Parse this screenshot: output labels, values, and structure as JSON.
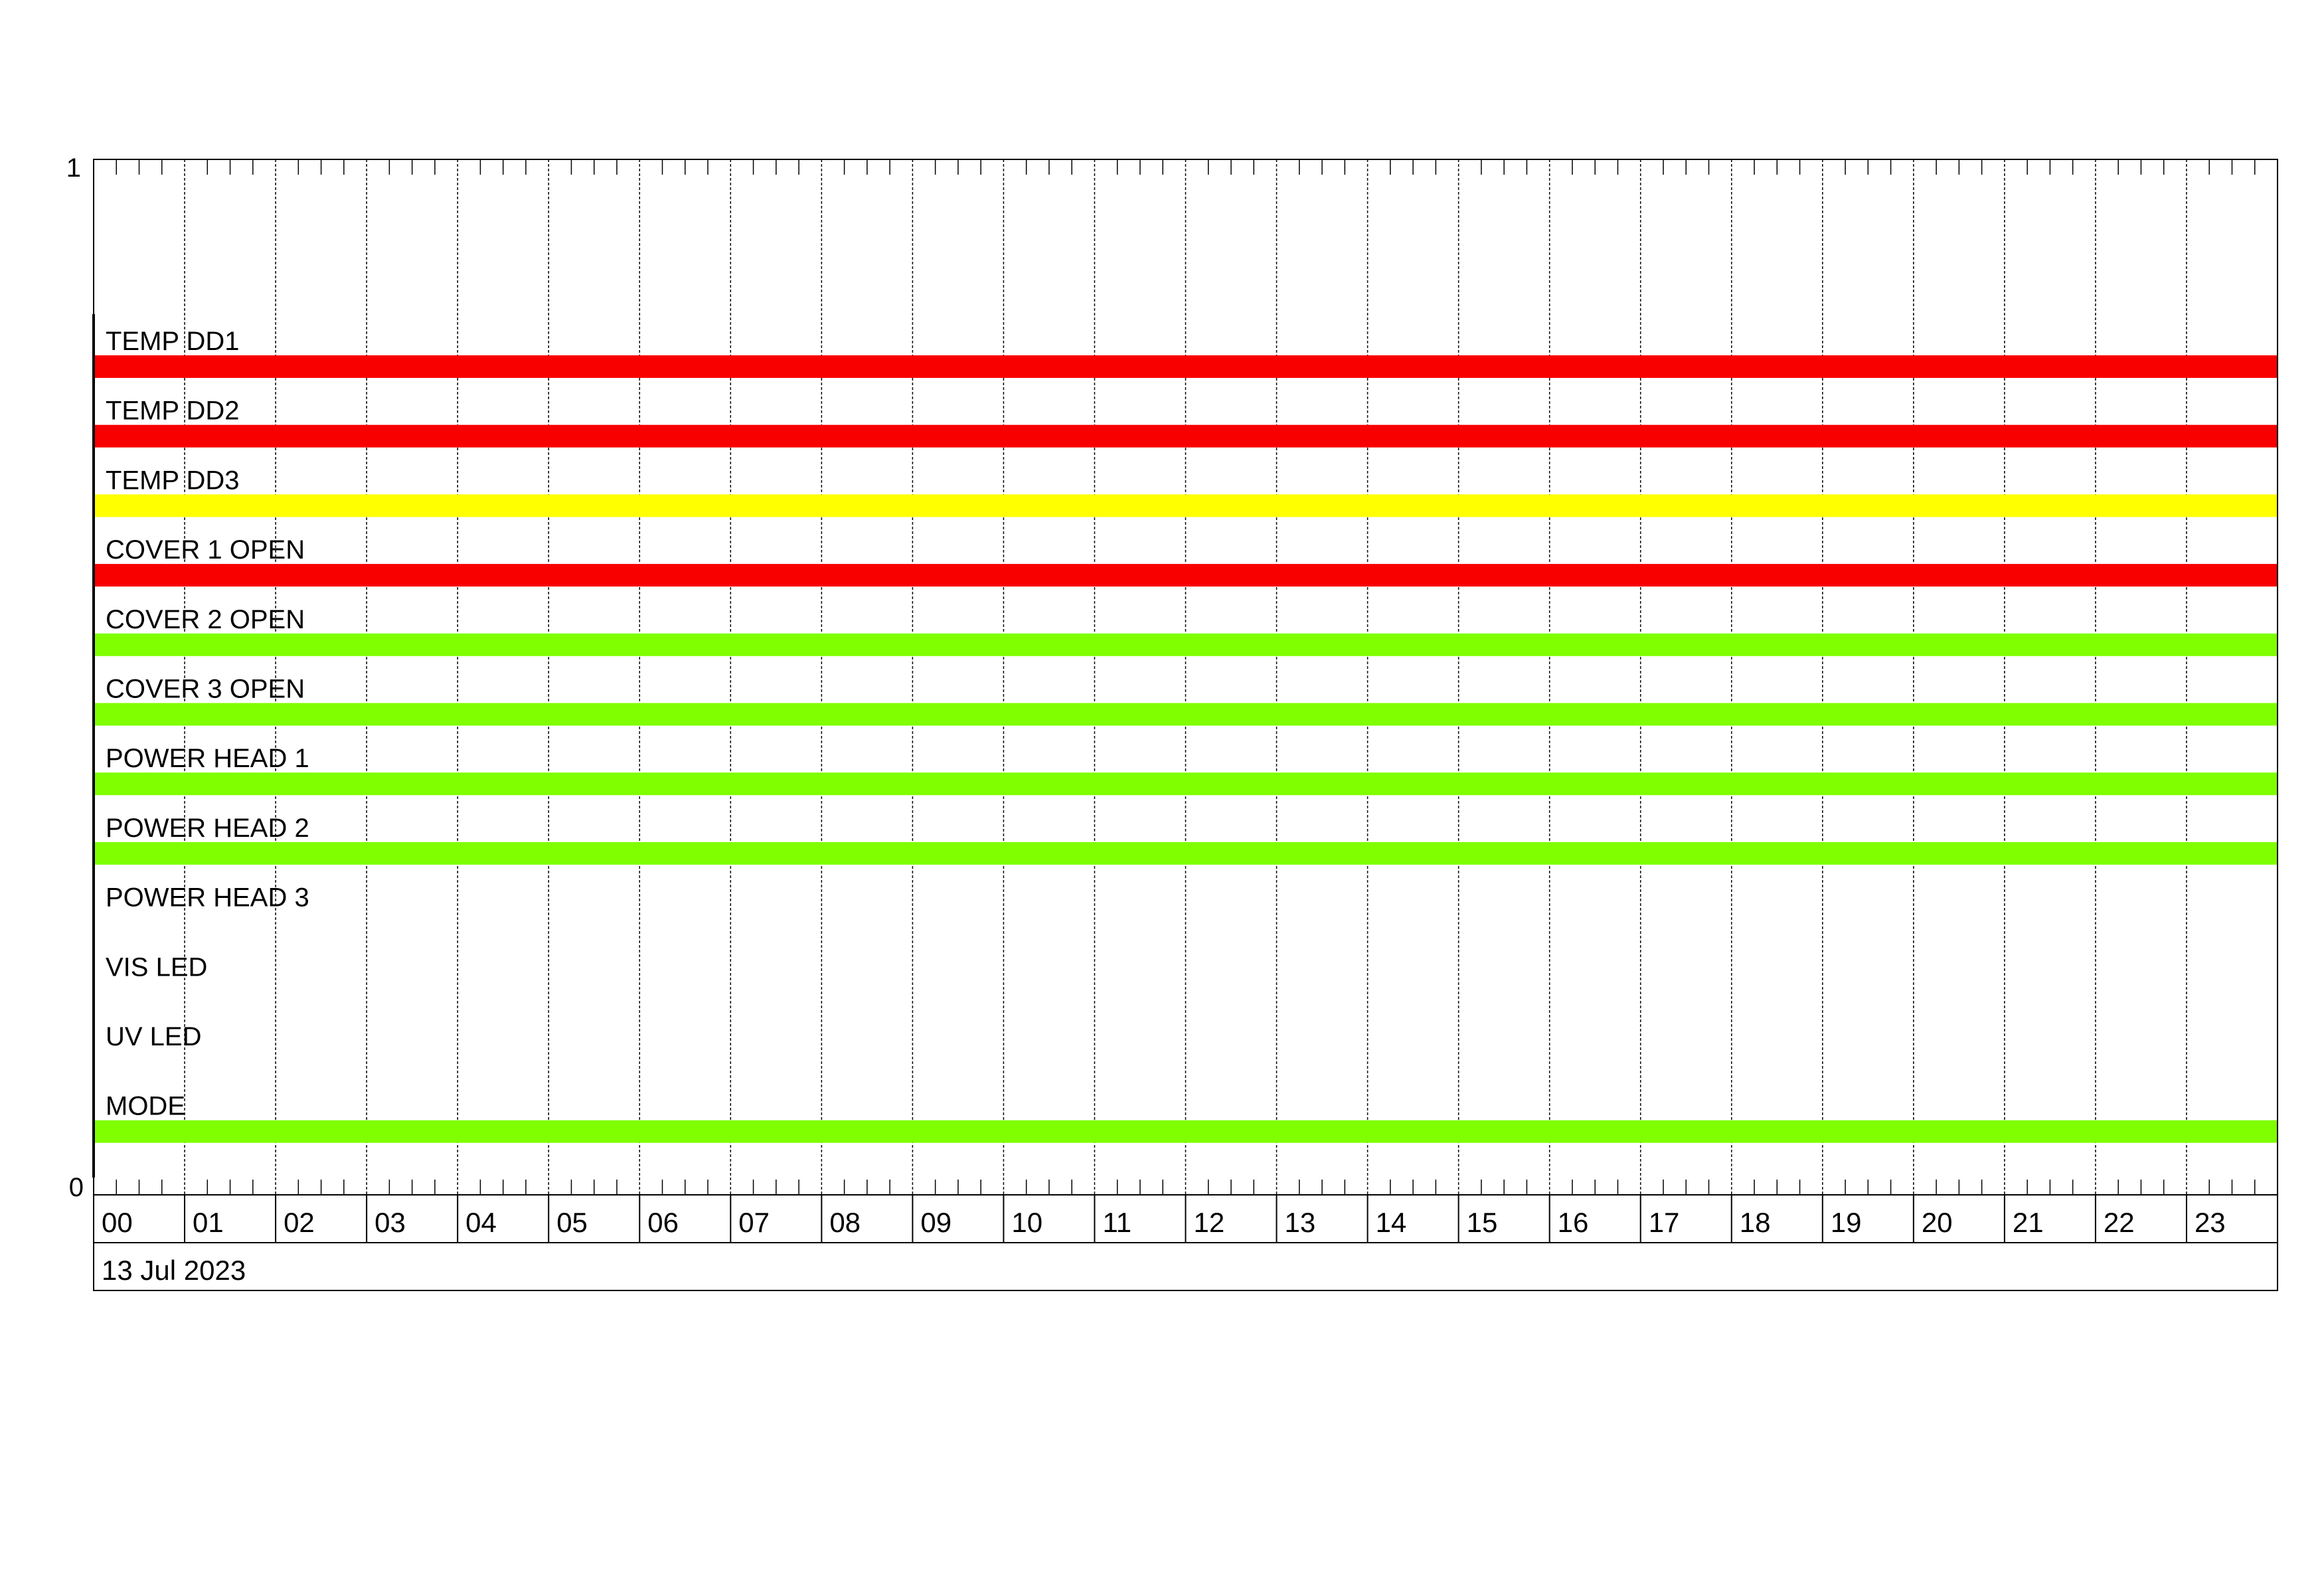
{
  "chart_data": {
    "type": "timeline",
    "title": "",
    "date_label": "13 Jul 2023",
    "y_ticks": [
      "1",
      "0"
    ],
    "ylim": [
      0,
      1
    ],
    "x_unit": "hour",
    "xlim": [
      0,
      24
    ],
    "x_tick_labels": [
      "00",
      "01",
      "02",
      "03",
      "04",
      "05",
      "06",
      "07",
      "08",
      "09",
      "10",
      "11",
      "12",
      "13",
      "14",
      "15",
      "16",
      "17",
      "18",
      "19",
      "20",
      "21",
      "22",
      "23"
    ],
    "minor_ticks_per_hour": 4,
    "grid": "dotted vertical at each hour",
    "colors": {
      "red": "#f80000",
      "yellow": "#ffff00",
      "green": "#7fff00"
    },
    "series": [
      {
        "name": "TEMP DD1",
        "segments": [
          {
            "start": 0,
            "end": 24,
            "color": "#f80000"
          }
        ]
      },
      {
        "name": "TEMP DD2",
        "segments": [
          {
            "start": 0,
            "end": 24,
            "color": "#f80000"
          }
        ]
      },
      {
        "name": "TEMP DD3",
        "segments": [
          {
            "start": 0,
            "end": 24,
            "color": "#ffff00"
          }
        ]
      },
      {
        "name": "COVER 1 OPEN",
        "segments": [
          {
            "start": 0,
            "end": 24,
            "color": "#f80000"
          }
        ]
      },
      {
        "name": "COVER 2 OPEN",
        "segments": [
          {
            "start": 0,
            "end": 24,
            "color": "#7fff00"
          }
        ]
      },
      {
        "name": "COVER 3 OPEN",
        "segments": [
          {
            "start": 0,
            "end": 24,
            "color": "#7fff00"
          }
        ]
      },
      {
        "name": "POWER HEAD 1",
        "segments": [
          {
            "start": 0,
            "end": 24,
            "color": "#7fff00"
          }
        ]
      },
      {
        "name": "POWER HEAD 2",
        "segments": [
          {
            "start": 0,
            "end": 24,
            "color": "#7fff00"
          }
        ]
      },
      {
        "name": "POWER HEAD 3",
        "segments": []
      },
      {
        "name": "VIS LED",
        "segments": []
      },
      {
        "name": "UV LED",
        "segments": []
      },
      {
        "name": "MODE",
        "segments": [
          {
            "start": 0,
            "end": 24,
            "color": "#7fff00"
          }
        ]
      }
    ]
  }
}
